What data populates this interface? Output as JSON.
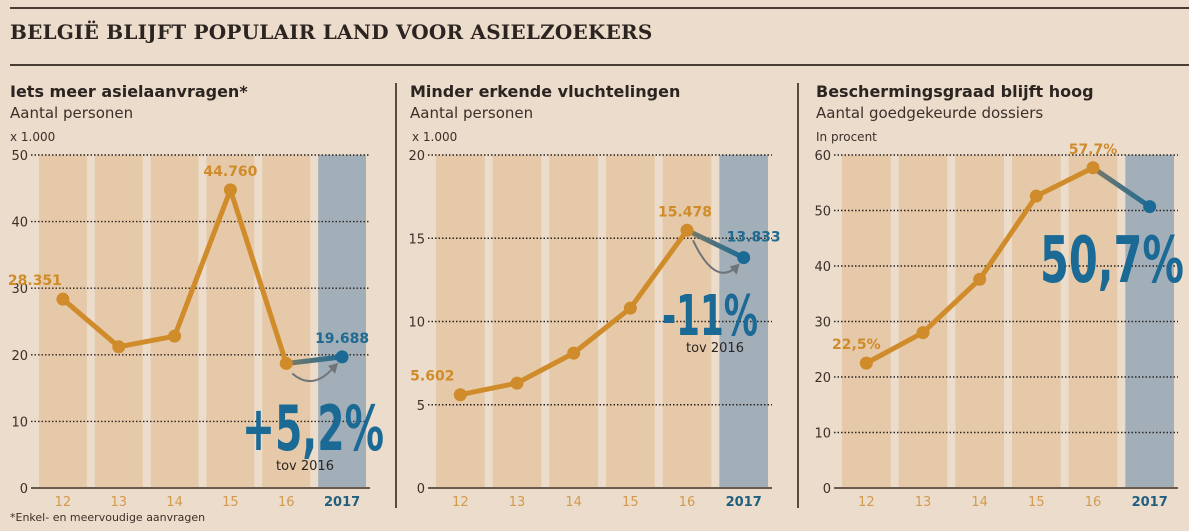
{
  "header": {
    "title": "BELGIË BLIJFT POPULAIR LAND VOOR ASIELZOEKERS"
  },
  "footnote": "*Enkel- en meervoudige aanvragen",
  "colors": {
    "background": "#ecdccb",
    "column": "#e5c9a8",
    "column_highlight": "#a3afb8",
    "line_orange": "#d08b2a",
    "line_blue": "#1b6a96",
    "arrow": "#6f7478"
  },
  "panels": [
    {
      "title": "Iets meer asielaanvragen*",
      "subtitle": "Aantal personen",
      "unit": "x 1.000"
    },
    {
      "title": "Minder erkende vluchtelingen",
      "subtitle": "Aantal personen",
      "unit": "x 1.000"
    },
    {
      "title": "Beschermingsgraad blijft hoog",
      "subtitle": "Aantal goedgekeurde dossiers",
      "unit": "In procent"
    }
  ],
  "chart_data": [
    {
      "type": "line",
      "title": "Iets meer asielaanvragen*",
      "ylabel": "Aantal personen x 1.000",
      "categories": [
        "12",
        "13",
        "14",
        "15",
        "16",
        "2017"
      ],
      "values": [
        28.351,
        21.2,
        22.8,
        44.76,
        18.7,
        19.688
      ],
      "ylim": [
        0,
        50
      ],
      "yticks": [
        0,
        10,
        20,
        30,
        40,
        50
      ],
      "highlight_category": "2017",
      "data_labels": [
        {
          "index": 0,
          "text": "28.351"
        },
        {
          "index": 3,
          "text": "44.760"
        },
        {
          "index": 5,
          "text": "19.688"
        }
      ],
      "annotation": {
        "text": "+5,2%",
        "note": "tov 2016"
      },
      "grid": true
    },
    {
      "type": "line",
      "title": "Minder erkende vluchtelingen",
      "ylabel": "Aantal personen x 1.000",
      "categories": [
        "12",
        "13",
        "14",
        "15",
        "16",
        "2017"
      ],
      "values": [
        5.602,
        6.3,
        8.1,
        10.8,
        15.478,
        13.833
      ],
      "ylim": [
        0,
        20
      ],
      "yticks": [
        0,
        5,
        10,
        15,
        20
      ],
      "highlight_category": "2017",
      "data_labels": [
        {
          "index": 0,
          "text": "5.602"
        },
        {
          "index": 4,
          "text": "15.478"
        },
        {
          "index": 5,
          "text": "13.833"
        }
      ],
      "annotation": {
        "text": "-11%",
        "note": "tov 2016"
      },
      "grid": true
    },
    {
      "type": "line",
      "title": "Beschermingsgraad blijft hoog",
      "ylabel": "Aantal goedgekeurde dossiers, in procent",
      "categories": [
        "12",
        "13",
        "14",
        "15",
        "16",
        "2017"
      ],
      "values": [
        22.5,
        28.0,
        37.6,
        52.6,
        57.7,
        50.7
      ],
      "ylim": [
        0,
        60
      ],
      "yticks": [
        0,
        10,
        20,
        30,
        40,
        50,
        60
      ],
      "highlight_category": "2017",
      "data_labels": [
        {
          "index": 0,
          "text": "22,5%"
        },
        {
          "index": 4,
          "text": "57,7%"
        }
      ],
      "annotation": {
        "text": "50,7%",
        "note": ""
      },
      "grid": true
    }
  ]
}
